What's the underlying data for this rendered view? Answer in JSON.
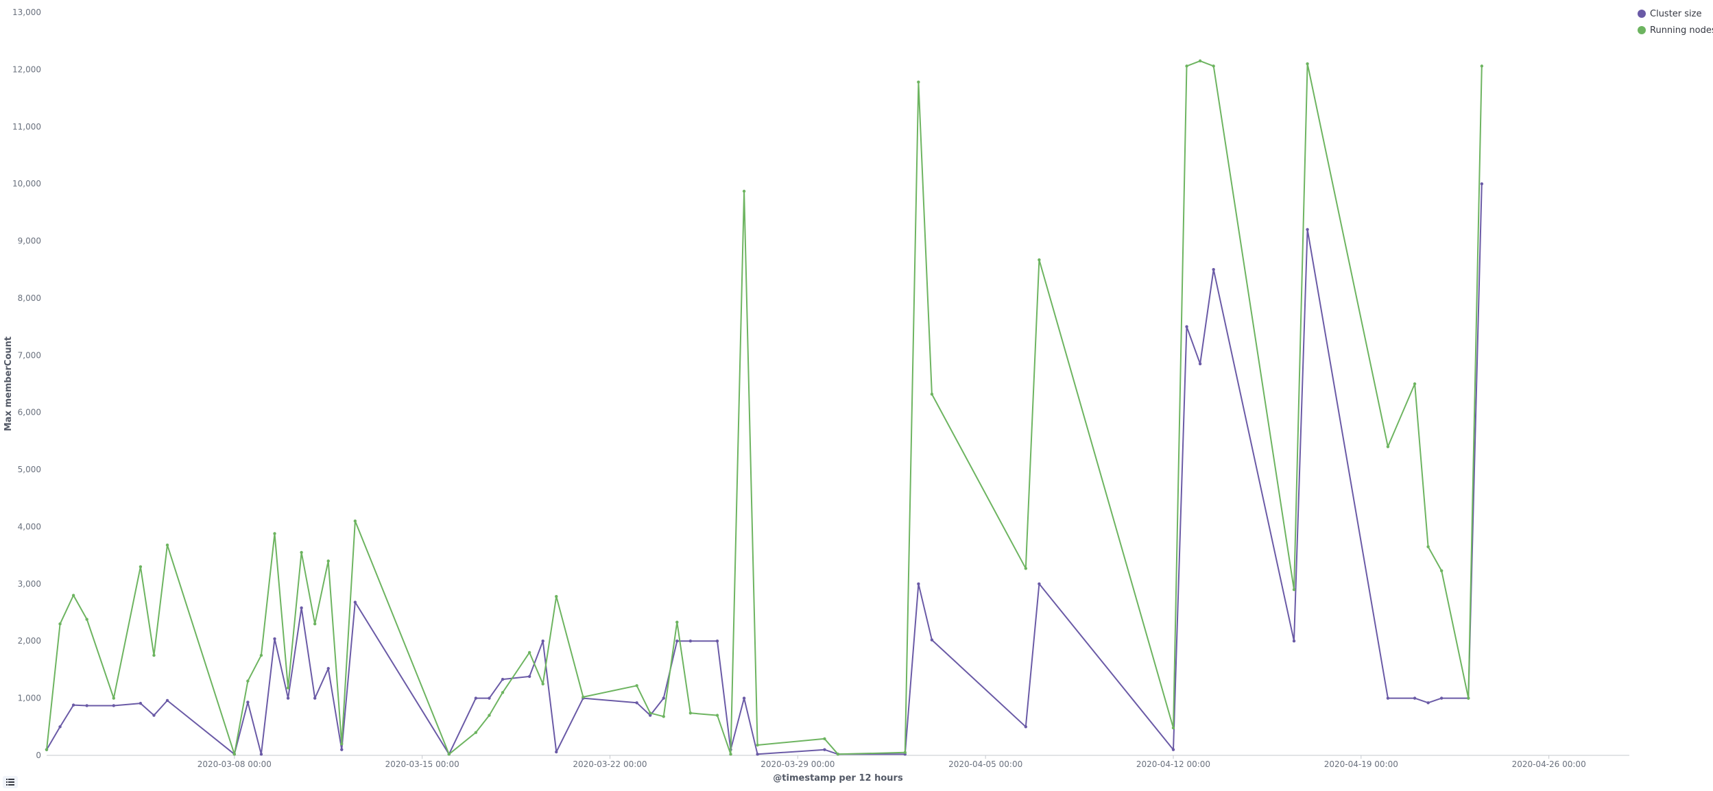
{
  "chart_data": {
    "type": "line",
    "xlabel": "@timestamp per 12 hours",
    "ylabel": "Max memberCount",
    "ylim": [
      0,
      13000
    ],
    "xlim": [
      "2020-03-01 00:00",
      "2020-04-29 00:00"
    ],
    "y_ticks": [
      "0",
      "1,000",
      "2,000",
      "3,000",
      "4,000",
      "5,000",
      "6,000",
      "7,000",
      "8,000",
      "9,000",
      "10,000",
      "11,000",
      "12,000",
      "13,000"
    ],
    "x_ticks": [
      "2020-03-08 00:00",
      "2020-03-15 00:00",
      "2020-03-22 00:00",
      "2020-03-29 00:00",
      "2020-04-05 00:00",
      "2020-04-12 00:00",
      "2020-04-19 00:00",
      "2020-04-26 00:00"
    ],
    "legend_position": "top-right",
    "grid": false,
    "series": [
      {
        "name": "Cluster size",
        "color": "#6a5aa6",
        "points": [
          [
            "2020-03-01 00:00",
            100
          ],
          [
            "2020-03-01 12:00",
            500
          ],
          [
            "2020-03-02 00:00",
            880
          ],
          [
            "2020-03-02 12:00",
            870
          ],
          [
            "2020-03-03 12:00",
            870
          ],
          [
            "2020-03-04 12:00",
            910
          ],
          [
            "2020-03-05 00:00",
            700
          ],
          [
            "2020-03-05 12:00",
            960
          ],
          [
            "2020-03-08 00:00",
            20
          ],
          [
            "2020-03-08 12:00",
            930
          ],
          [
            "2020-03-09 00:00",
            20
          ],
          [
            "2020-03-09 12:00",
            2040
          ],
          [
            "2020-03-10 00:00",
            1000
          ],
          [
            "2020-03-10 12:00",
            2580
          ],
          [
            "2020-03-11 00:00",
            1000
          ],
          [
            "2020-03-11 12:00",
            1520
          ],
          [
            "2020-03-12 00:00",
            100
          ],
          [
            "2020-03-12 12:00",
            2680
          ],
          [
            "2020-03-16 00:00",
            20
          ],
          [
            "2020-03-17 00:00",
            1000
          ],
          [
            "2020-03-17 12:00",
            1000
          ],
          [
            "2020-03-18 00:00",
            1330
          ],
          [
            "2020-03-19 00:00",
            1380
          ],
          [
            "2020-03-19 12:00",
            2000
          ],
          [
            "2020-03-20 00:00",
            60
          ],
          [
            "2020-03-21 00:00",
            1000
          ],
          [
            "2020-03-23 00:00",
            920
          ],
          [
            "2020-03-23 12:00",
            700
          ],
          [
            "2020-03-24 00:00",
            1000
          ],
          [
            "2020-03-24 12:00",
            2000
          ],
          [
            "2020-03-25 00:00",
            2000
          ],
          [
            "2020-03-26 00:00",
            2000
          ],
          [
            "2020-03-26 12:00",
            100
          ],
          [
            "2020-03-27 00:00",
            1000
          ],
          [
            "2020-03-27 12:00",
            20
          ],
          [
            "2020-03-30 00:00",
            100
          ],
          [
            "2020-03-30 12:00",
            20
          ],
          [
            "2020-04-02 00:00",
            20
          ],
          [
            "2020-04-02 12:00",
            3000
          ],
          [
            "2020-04-03 00:00",
            2020
          ],
          [
            "2020-04-06 12:00",
            500
          ],
          [
            "2020-04-07 00:00",
            3000
          ],
          [
            "2020-04-12 00:00",
            100
          ],
          [
            "2020-04-12 12:00",
            7500
          ],
          [
            "2020-04-13 00:00",
            6850
          ],
          [
            "2020-04-13 12:00",
            8500
          ],
          [
            "2020-04-16 12:00",
            2000
          ],
          [
            "2020-04-17 00:00",
            9200
          ],
          [
            "2020-04-20 00:00",
            1000
          ],
          [
            "2020-04-21 00:00",
            1000
          ],
          [
            "2020-04-21 12:00",
            920
          ],
          [
            "2020-04-22 00:00",
            1000
          ],
          [
            "2020-04-23 00:00",
            1000
          ],
          [
            "2020-04-23 12:00",
            10000
          ]
        ]
      },
      {
        "name": "Running nodes",
        "color": "#6db460",
        "points": [
          [
            "2020-03-01 00:00",
            100
          ],
          [
            "2020-03-01 12:00",
            2300
          ],
          [
            "2020-03-02 00:00",
            2800
          ],
          [
            "2020-03-02 12:00",
            2380
          ],
          [
            "2020-03-03 12:00",
            1000
          ],
          [
            "2020-03-04 12:00",
            3300
          ],
          [
            "2020-03-05 00:00",
            1750
          ],
          [
            "2020-03-05 12:00",
            3680
          ],
          [
            "2020-03-08 00:00",
            20
          ],
          [
            "2020-03-08 12:00",
            1300
          ],
          [
            "2020-03-09 00:00",
            1750
          ],
          [
            "2020-03-09 12:00",
            3880
          ],
          [
            "2020-03-10 00:00",
            1180
          ],
          [
            "2020-03-10 12:00",
            3550
          ],
          [
            "2020-03-11 00:00",
            2300
          ],
          [
            "2020-03-11 12:00",
            3400
          ],
          [
            "2020-03-12 00:00",
            200
          ],
          [
            "2020-03-12 12:00",
            4100
          ],
          [
            "2020-03-16 00:00",
            20
          ],
          [
            "2020-03-17 00:00",
            400
          ],
          [
            "2020-03-17 12:00",
            700
          ],
          [
            "2020-03-18 00:00",
            1100
          ],
          [
            "2020-03-19 00:00",
            1800
          ],
          [
            "2020-03-19 12:00",
            1250
          ],
          [
            "2020-03-20 00:00",
            2780
          ],
          [
            "2020-03-21 00:00",
            1020
          ],
          [
            "2020-03-23 00:00",
            1220
          ],
          [
            "2020-03-23 12:00",
            740
          ],
          [
            "2020-03-24 00:00",
            680
          ],
          [
            "2020-03-24 12:00",
            2330
          ],
          [
            "2020-03-25 00:00",
            740
          ],
          [
            "2020-03-26 00:00",
            700
          ],
          [
            "2020-03-26 12:00",
            20
          ],
          [
            "2020-03-27 00:00",
            9870
          ],
          [
            "2020-03-27 12:00",
            180
          ],
          [
            "2020-03-30 00:00",
            290
          ],
          [
            "2020-03-30 12:00",
            20
          ],
          [
            "2020-04-02 00:00",
            50
          ],
          [
            "2020-04-02 12:00",
            11780
          ],
          [
            "2020-04-03 00:00",
            6320
          ],
          [
            "2020-04-06 12:00",
            3270
          ],
          [
            "2020-04-07 00:00",
            8670
          ],
          [
            "2020-04-12 00:00",
            480
          ],
          [
            "2020-04-12 12:00",
            12060
          ],
          [
            "2020-04-13 00:00",
            12150
          ],
          [
            "2020-04-13 12:00",
            12060
          ],
          [
            "2020-04-16 12:00",
            2900
          ],
          [
            "2020-04-17 00:00",
            12100
          ],
          [
            "2020-04-20 00:00",
            5400
          ],
          [
            "2020-04-21 00:00",
            6500
          ],
          [
            "2020-04-21 12:00",
            3650
          ],
          [
            "2020-04-22 00:00",
            3230
          ],
          [
            "2020-04-23 00:00",
            1000
          ],
          [
            "2020-04-23 12:00",
            12060
          ]
        ]
      }
    ]
  },
  "legend_toggle_icon": "list-icon"
}
